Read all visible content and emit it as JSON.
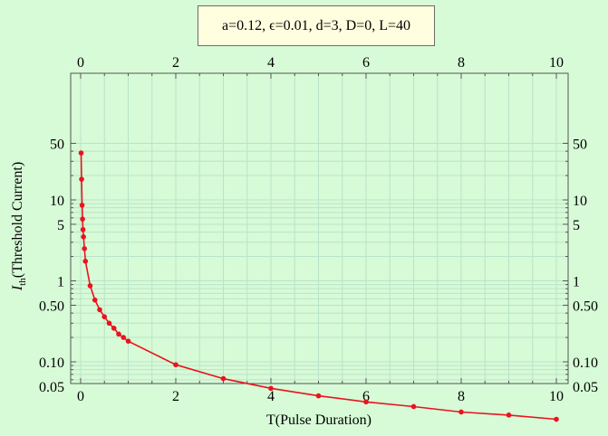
{
  "chart_data": {
    "type": "line",
    "annotation": "a=0.12, ϵ=0.01, d=3, D=0, L=40",
    "xlabel": "T(Pulse Duration)",
    "ylabel_main": "I",
    "ylabel_sub": "th",
    "ylabel_rest": "(Threshold Current)",
    "xlim": [
      0,
      10
    ],
    "ylim": [
      0.02,
      50
    ],
    "yscale": "log",
    "grid": true,
    "x_ticks": [
      {
        "value": 0,
        "label": "0"
      },
      {
        "value": 2,
        "label": "2"
      },
      {
        "value": 4,
        "label": "4"
      },
      {
        "value": 6,
        "label": "6"
      },
      {
        "value": 8,
        "label": "8"
      },
      {
        "value": 10,
        "label": "10"
      }
    ],
    "y_ticks": [
      {
        "value": 0.05,
        "label": "0.05"
      },
      {
        "value": 0.1,
        "label": "0.10"
      },
      {
        "value": 0.5,
        "label": "0.50"
      },
      {
        "value": 1,
        "label": "1"
      },
      {
        "value": 5,
        "label": "5"
      },
      {
        "value": 10,
        "label": "10"
      },
      {
        "value": 50,
        "label": "50"
      }
    ],
    "series": [
      {
        "color": "#e8141e",
        "x": [
          0.01,
          0.02,
          0.03,
          0.04,
          0.05,
          0.06,
          0.08,
          0.1,
          0.2,
          0.3,
          0.4,
          0.5,
          0.6,
          0.7,
          0.8,
          0.9,
          1,
          2,
          3,
          4,
          5,
          6,
          7,
          8,
          9,
          10
        ],
        "y": [
          38,
          18,
          8.6,
          5.8,
          4.3,
          3.5,
          2.5,
          1.75,
          0.87,
          0.58,
          0.44,
          0.36,
          0.3,
          0.26,
          0.22,
          0.2,
          0.18,
          0.092,
          0.062,
          0.047,
          0.038,
          0.032,
          0.028,
          0.024,
          0.022,
          0.0195
        ]
      }
    ]
  },
  "colors": {
    "background": "#d7fad7",
    "grid": "#b8e4c8",
    "frame": "#555555",
    "annotation_box": "#ffffe0"
  }
}
